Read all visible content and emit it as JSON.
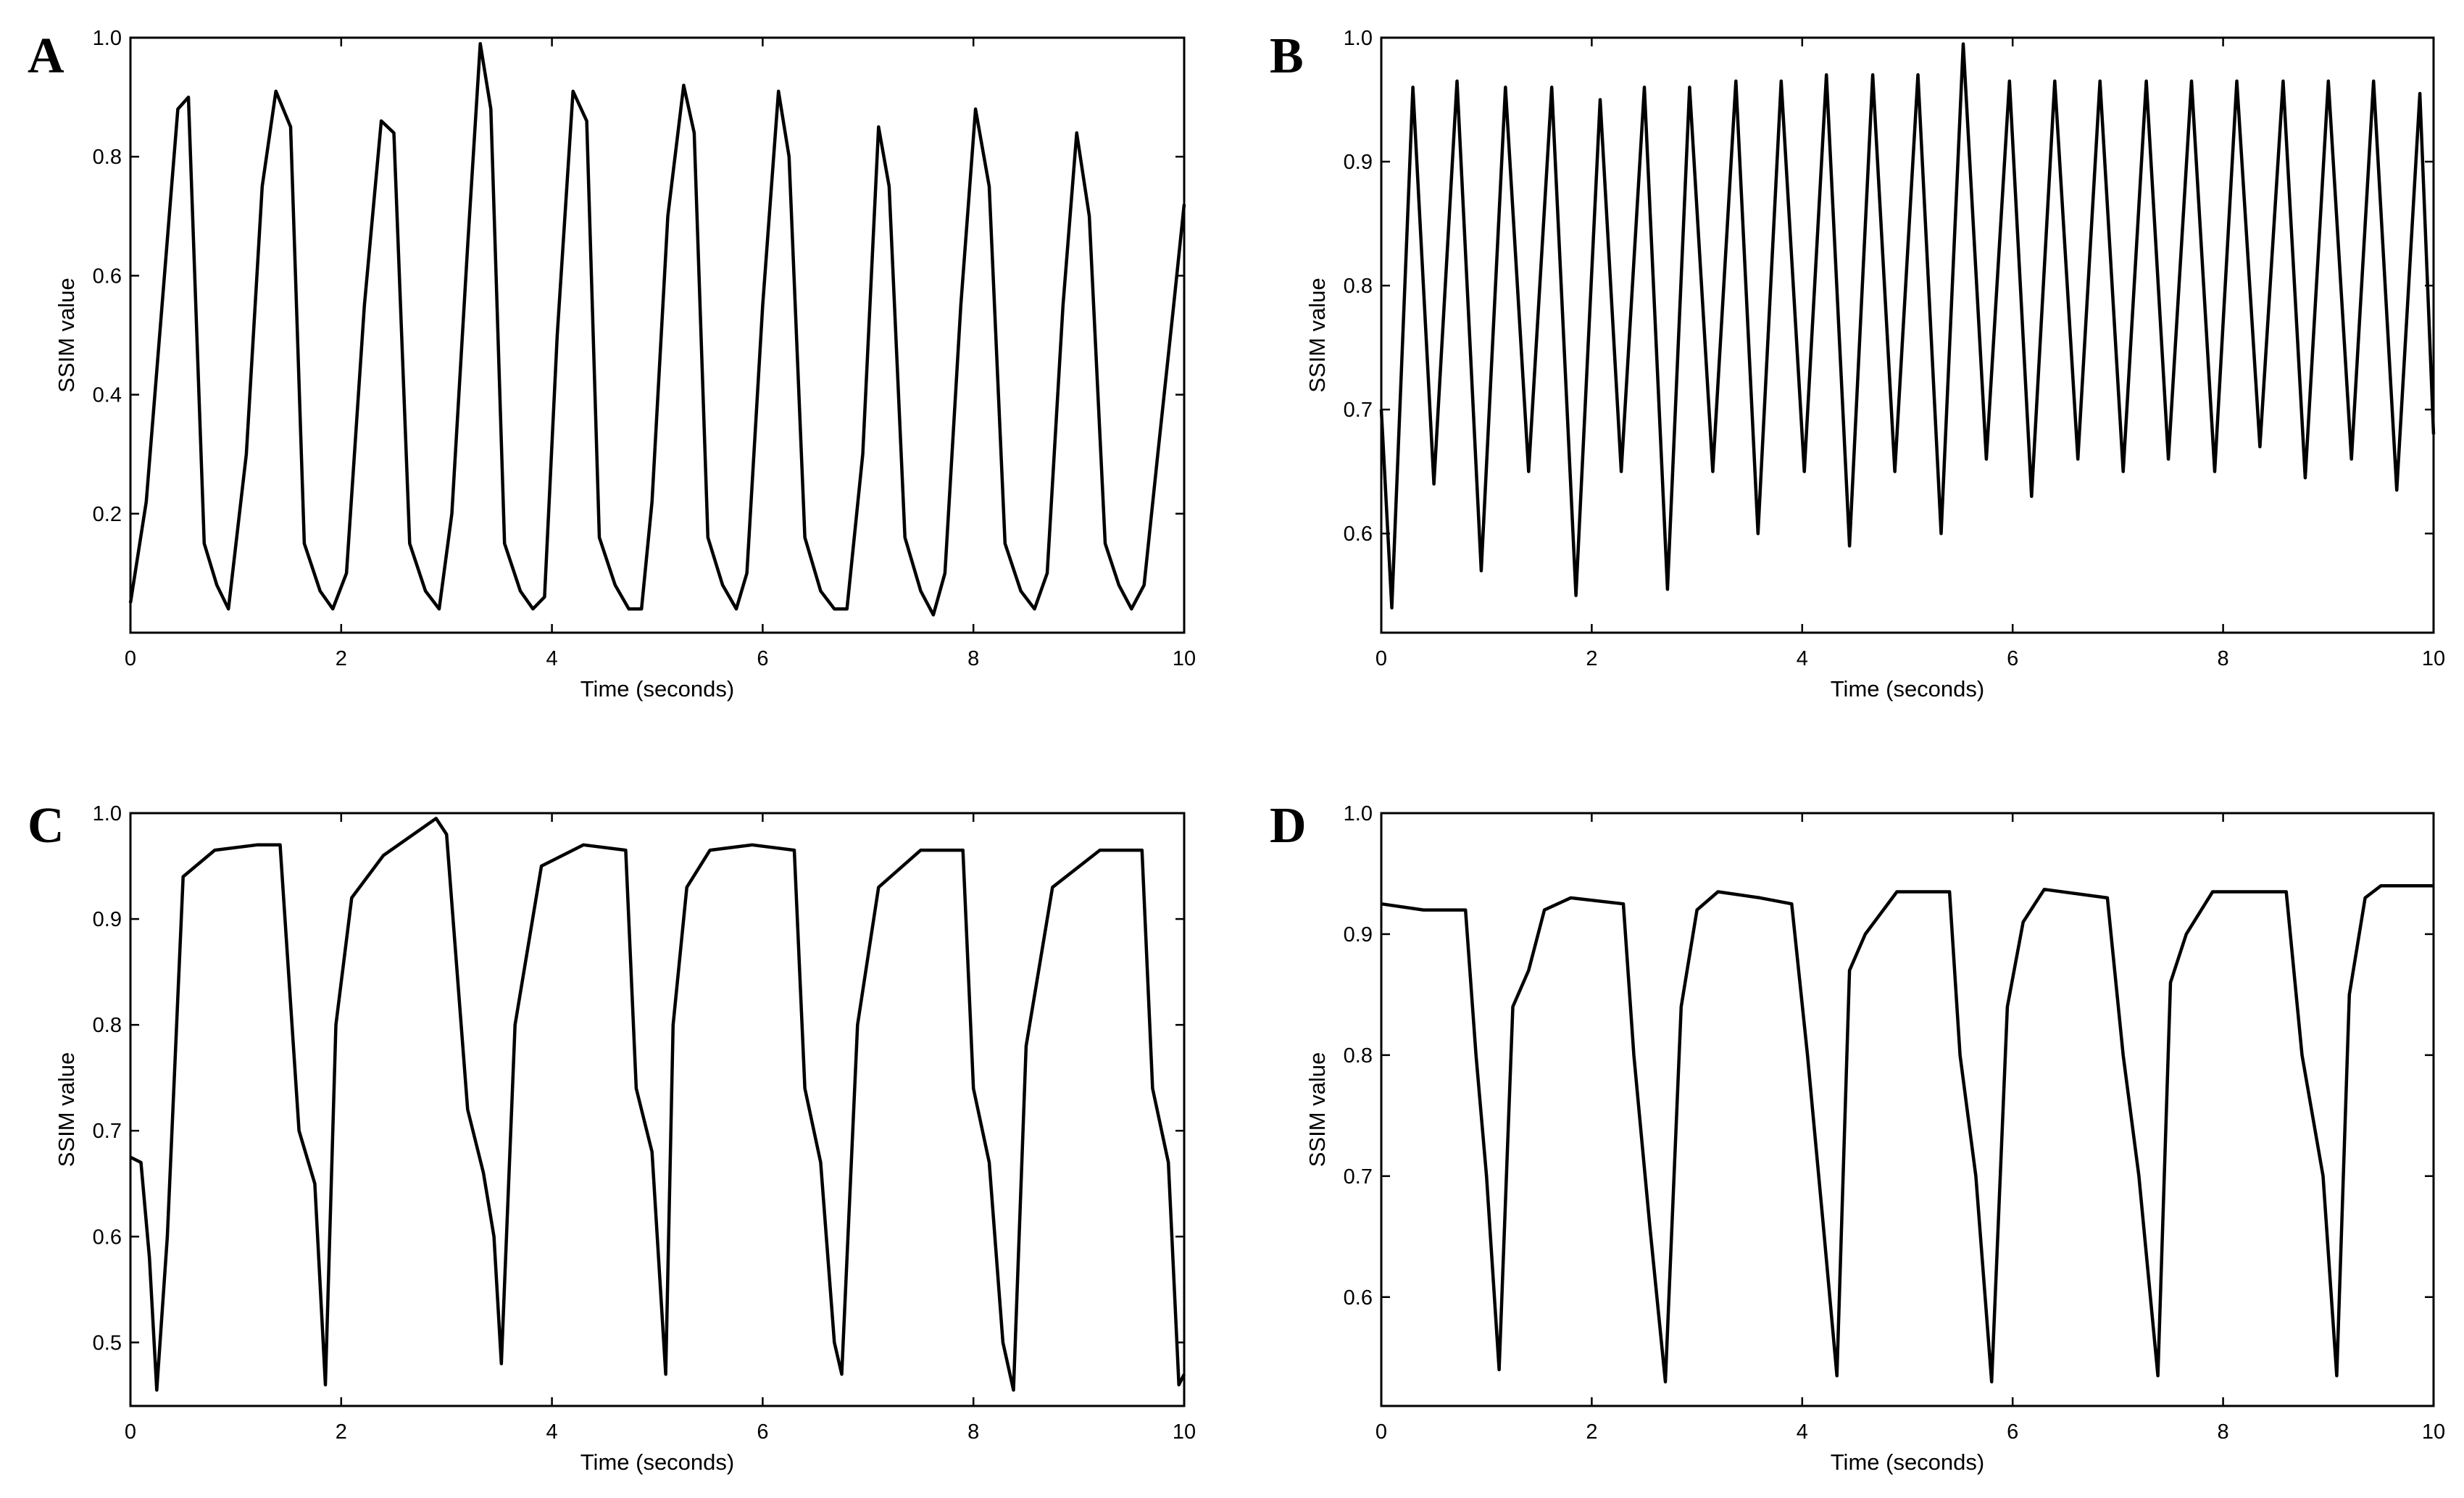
{
  "chart_data": [
    {
      "id": "A",
      "type": "line",
      "panel_label": "A",
      "xlabel": "Time (seconds)",
      "ylabel": "SSIM value",
      "xlim": [
        0,
        10
      ],
      "ylim": [
        0,
        1.0
      ],
      "x_ticks": [
        0,
        2,
        4,
        6,
        8,
        10
      ],
      "y_ticks": [
        0.2,
        0.4,
        0.6,
        0.8,
        1.0
      ],
      "x_tick_labels": [
        "0",
        "2",
        "4",
        "6",
        "8",
        "10"
      ],
      "y_tick_labels": [
        "0.2",
        "0.4",
        "0.6",
        "0.8",
        "1.0"
      ],
      "grid": false,
      "series": [
        {
          "x": [
            0,
            0.15,
            0.3,
            0.45,
            0.55,
            0.7,
            0.82,
            0.93,
            1.1,
            1.25,
            1.38,
            1.52,
            1.65,
            1.8,
            1.92,
            2.05,
            2.22,
            2.38,
            2.5,
            2.65,
            2.8,
            2.93,
            3.05,
            3.2,
            3.32,
            3.42,
            3.55,
            3.7,
            3.82,
            3.93,
            4.05,
            4.2,
            4.33,
            4.45,
            4.6,
            4.73,
            4.85,
            4.95,
            5.1,
            5.25,
            5.35,
            5.48,
            5.62,
            5.75,
            5.85,
            6.0,
            6.15,
            6.25,
            6.4,
            6.55,
            6.68,
            6.8,
            6.95,
            7.1,
            7.2,
            7.35,
            7.5,
            7.62,
            7.73,
            7.88,
            8.02,
            8.15,
            8.3,
            8.45,
            8.58,
            8.7,
            8.85,
            8.98,
            9.1,
            9.25,
            9.38,
            9.5,
            9.62,
            9.75,
            9.9,
            10.0
          ],
          "y": [
            0.05,
            0.22,
            0.55,
            0.88,
            0.9,
            0.15,
            0.08,
            0.04,
            0.3,
            0.75,
            0.91,
            0.85,
            0.15,
            0.07,
            0.04,
            0.1,
            0.55,
            0.86,
            0.84,
            0.15,
            0.07,
            0.04,
            0.2,
            0.65,
            0.99,
            0.88,
            0.15,
            0.07,
            0.04,
            0.06,
            0.5,
            0.91,
            0.86,
            0.16,
            0.08,
            0.04,
            0.04,
            0.22,
            0.7,
            0.92,
            0.84,
            0.16,
            0.08,
            0.04,
            0.1,
            0.55,
            0.91,
            0.8,
            0.16,
            0.07,
            0.04,
            0.04,
            0.3,
            0.85,
            0.75,
            0.16,
            0.07,
            0.03,
            0.1,
            0.55,
            0.88,
            0.75,
            0.15,
            0.07,
            0.04,
            0.1,
            0.55,
            0.84,
            0.7,
            0.15,
            0.08,
            0.04,
            0.08,
            0.3,
            0.55,
            0.72
          ]
        }
      ]
    },
    {
      "id": "B",
      "type": "line",
      "panel_label": "B",
      "xlabel": "Time (seconds)",
      "ylabel": "SSIM value",
      "xlim": [
        0,
        10
      ],
      "ylim": [
        0.52,
        1.0
      ],
      "x_ticks": [
        0,
        2,
        4,
        6,
        8,
        10
      ],
      "y_ticks": [
        0.6,
        0.7,
        0.8,
        0.9,
        1.0
      ],
      "x_tick_labels": [
        "0",
        "2",
        "4",
        "6",
        "8",
        "10"
      ],
      "y_tick_labels": [
        "0.6",
        "0.7",
        "0.8",
        "0.9",
        "1.0"
      ],
      "grid": false,
      "series": [
        {
          "x": [
            0,
            0.1,
            0.3,
            0.5,
            0.72,
            0.95,
            1.18,
            1.4,
            1.62,
            1.85,
            2.08,
            2.28,
            2.5,
            2.72,
            2.93,
            3.15,
            3.37,
            3.58,
            3.8,
            4.02,
            4.23,
            4.45,
            4.67,
            4.88,
            5.1,
            5.32,
            5.53,
            5.75,
            5.97,
            6.18,
            6.4,
            6.62,
            6.83,
            7.05,
            7.27,
            7.48,
            7.7,
            7.92,
            8.13,
            8.35,
            8.57,
            8.78,
            9.0,
            9.22,
            9.43,
            9.65,
            9.87,
            10.0
          ],
          "y": [
            0.7,
            0.54,
            0.96,
            0.64,
            0.965,
            0.57,
            0.96,
            0.65,
            0.96,
            0.55,
            0.95,
            0.65,
            0.96,
            0.555,
            0.96,
            0.65,
            0.965,
            0.6,
            0.965,
            0.65,
            0.97,
            0.59,
            0.97,
            0.65,
            0.97,
            0.6,
            0.995,
            0.66,
            0.965,
            0.63,
            0.965,
            0.66,
            0.965,
            0.65,
            0.965,
            0.66,
            0.965,
            0.65,
            0.965,
            0.67,
            0.965,
            0.645,
            0.965,
            0.66,
            0.965,
            0.635,
            0.955,
            0.68
          ]
        }
      ]
    },
    {
      "id": "C",
      "type": "line",
      "panel_label": "C",
      "xlabel": "Time (seconds)",
      "ylabel": "SSIM value",
      "xlim": [
        0,
        10
      ],
      "ylim": [
        0.44,
        1.0
      ],
      "x_ticks": [
        0,
        2,
        4,
        6,
        8,
        10
      ],
      "y_ticks": [
        0.5,
        0.6,
        0.7,
        0.8,
        0.9,
        1.0
      ],
      "x_tick_labels": [
        "0",
        "2",
        "4",
        "6",
        "8",
        "10"
      ],
      "y_tick_labels": [
        "0.5",
        "0.6",
        "0.7",
        "0.8",
        "0.9",
        "1.0"
      ],
      "grid": false,
      "series": [
        {
          "x": [
            0,
            0.1,
            0.18,
            0.25,
            0.35,
            0.5,
            0.8,
            1.2,
            1.42,
            1.5,
            1.6,
            1.75,
            1.85,
            1.95,
            2.1,
            2.4,
            2.9,
            3.0,
            3.2,
            3.35,
            3.45,
            3.52,
            3.65,
            3.9,
            4.3,
            4.7,
            4.8,
            4.95,
            5.08,
            5.15,
            5.28,
            5.5,
            5.9,
            6.3,
            6.4,
            6.55,
            6.68,
            6.75,
            6.9,
            7.1,
            7.5,
            7.9,
            8.0,
            8.15,
            8.28,
            8.38,
            8.5,
            8.75,
            9.2,
            9.6,
            9.7,
            9.85,
            9.95,
            10.0
          ],
          "y": [
            0.675,
            0.67,
            0.58,
            0.455,
            0.6,
            0.94,
            0.965,
            0.97,
            0.97,
            0.85,
            0.7,
            0.65,
            0.46,
            0.8,
            0.92,
            0.96,
            0.995,
            0.98,
            0.72,
            0.66,
            0.6,
            0.48,
            0.8,
            0.95,
            0.97,
            0.965,
            0.74,
            0.68,
            0.47,
            0.8,
            0.93,
            0.965,
            0.97,
            0.965,
            0.74,
            0.67,
            0.5,
            0.47,
            0.8,
            0.93,
            0.965,
            0.965,
            0.74,
            0.67,
            0.5,
            0.455,
            0.78,
            0.93,
            0.965,
            0.965,
            0.74,
            0.67,
            0.46,
            0.47
          ]
        }
      ]
    },
    {
      "id": "D",
      "type": "line",
      "panel_label": "D",
      "xlabel": "Time (seconds)",
      "ylabel": "SSIM value",
      "xlim": [
        0,
        10
      ],
      "ylim": [
        0.51,
        1.0
      ],
      "x_ticks": [
        0,
        2,
        4,
        6,
        8,
        10
      ],
      "y_ticks": [
        0.6,
        0.7,
        0.8,
        0.9,
        1.0
      ],
      "x_tick_labels": [
        "0",
        "2",
        "4",
        "6",
        "8",
        "10"
      ],
      "y_tick_labels": [
        "0.6",
        "0.7",
        "0.8",
        "0.9",
        "1.0"
      ],
      "grid": false,
      "series": [
        {
          "x": [
            0,
            0.4,
            0.8,
            0.9,
            1.0,
            1.12,
            1.25,
            1.4,
            1.55,
            1.8,
            2.3,
            2.4,
            2.55,
            2.7,
            2.85,
            3.0,
            3.2,
            3.6,
            3.9,
            4.05,
            4.2,
            4.33,
            4.45,
            4.6,
            4.9,
            5.4,
            5.5,
            5.65,
            5.8,
            5.95,
            6.1,
            6.3,
            6.9,
            7.05,
            7.2,
            7.38,
            7.5,
            7.65,
            7.9,
            8.6,
            8.75,
            8.95,
            9.08,
            9.2,
            9.35,
            9.5,
            10.0
          ],
          "y": [
            0.925,
            0.92,
            0.92,
            0.8,
            0.7,
            0.54,
            0.84,
            0.87,
            0.92,
            0.93,
            0.925,
            0.8,
            0.66,
            0.53,
            0.84,
            0.92,
            0.935,
            0.93,
            0.925,
            0.8,
            0.66,
            0.535,
            0.87,
            0.9,
            0.935,
            0.935,
            0.8,
            0.7,
            0.53,
            0.84,
            0.91,
            0.937,
            0.93,
            0.8,
            0.7,
            0.535,
            0.86,
            0.9,
            0.935,
            0.935,
            0.8,
            0.7,
            0.535,
            0.85,
            0.93,
            0.94,
            0.94
          ]
        }
      ]
    }
  ]
}
